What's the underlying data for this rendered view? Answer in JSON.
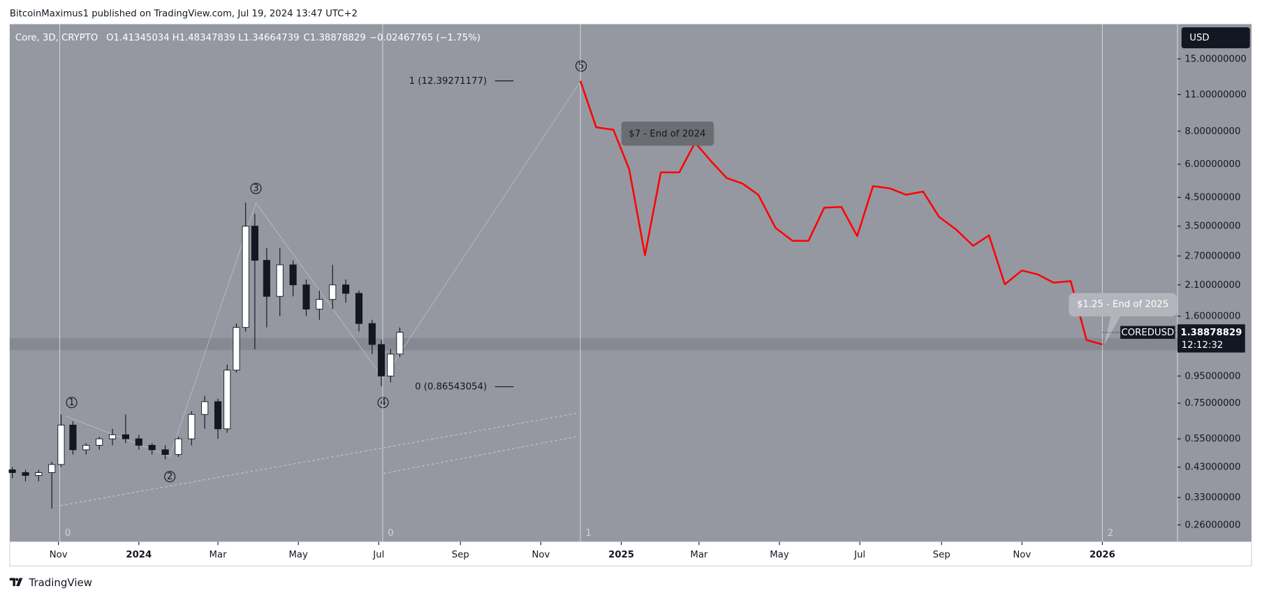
{
  "header": "BitcoinMaximus1 published on TradingView.com, Jul 19, 2024 13:47 UTC+2",
  "legend": {
    "symbol": "Core, 3D, CRYPTO",
    "open": "O1.41345034",
    "high": "H1.48347839",
    "low": "L1.34664739",
    "close": "C1.38878829",
    "change": "−0.02467765 (−1.75%)"
  },
  "footer": "TradingView",
  "currency": "USD",
  "chart_data": {
    "type": "candlestick",
    "log_scale": true,
    "ylim": [
      0.2245,
      20.3
    ],
    "yticks": [
      {
        "value": 15,
        "label": "15.00000000"
      },
      {
        "value": 11,
        "label": "11.00000000"
      },
      {
        "value": 8,
        "label": "8.00000000"
      },
      {
        "value": 6,
        "label": "6.00000000"
      },
      {
        "value": 4.5,
        "label": "4.50000000"
      },
      {
        "value": 3.5,
        "label": "3.50000000"
      },
      {
        "value": 2.7,
        "label": "2.70000000"
      },
      {
        "value": 2.1,
        "label": "2.10000000"
      },
      {
        "value": 1.6,
        "label": "1.60000000"
      },
      {
        "value": 0.95,
        "label": "0.95000000"
      },
      {
        "value": 0.75,
        "label": "0.75000000"
      },
      {
        "value": 0.55,
        "label": "0.55000000"
      },
      {
        "value": 0.43,
        "label": "0.43000000"
      },
      {
        "value": 0.33,
        "label": "0.33000000"
      },
      {
        "value": 0.26,
        "label": "0.26000000"
      }
    ],
    "xlim": [
      "2023-09-25",
      "2026-02-27"
    ],
    "xticks": [
      {
        "value": "2023-11-01",
        "label": "Nov"
      },
      {
        "value": "2024-01-01",
        "label": "2024"
      },
      {
        "value": "2024-03-01",
        "label": "Mar"
      },
      {
        "value": "2024-05-01",
        "label": "May"
      },
      {
        "value": "2024-07-01",
        "label": "Jul"
      },
      {
        "value": "2024-09-01",
        "label": "Sep"
      },
      {
        "value": "2024-11-01",
        "label": "Nov"
      },
      {
        "value": "2025-01-01",
        "label": "2025"
      },
      {
        "value": "2025-03-01",
        "label": "Mar"
      },
      {
        "value": "2025-05-01",
        "label": "May"
      },
      {
        "value": "2025-07-01",
        "label": "Jul"
      },
      {
        "value": "2025-09-01",
        "label": "Sep"
      },
      {
        "value": "2025-11-01",
        "label": "Nov"
      },
      {
        "value": "2026-01-01",
        "label": "2026"
      }
    ],
    "x": [
      "2023-09-27",
      "2023-10-07",
      "2023-10-17",
      "2023-10-27",
      "2023-11-03",
      "2023-11-12",
      "2023-11-22",
      "2023-12-02",
      "2023-12-12",
      "2023-12-22",
      "2024-01-01",
      "2024-01-11",
      "2024-01-21",
      "2024-01-31",
      "2024-02-10",
      "2024-02-20",
      "2024-03-01",
      "2024-03-08",
      "2024-03-15",
      "2024-03-22",
      "2024-03-29",
      "2024-04-07",
      "2024-04-17",
      "2024-04-27",
      "2024-05-07",
      "2024-05-17",
      "2024-05-27",
      "2024-06-06",
      "2024-06-16",
      "2024-06-26",
      "2024-07-03",
      "2024-07-10",
      "2024-07-17"
    ],
    "open": [
      0.42,
      0.41,
      0.4,
      0.41,
      0.44,
      0.62,
      0.5,
      0.52,
      0.55,
      0.57,
      0.55,
      0.52,
      0.5,
      0.48,
      0.55,
      0.68,
      0.76,
      0.6,
      1.0,
      1.45,
      3.5,
      2.6,
      1.9,
      2.5,
      2.1,
      1.7,
      1.85,
      2.1,
      1.95,
      1.5,
      1.25,
      0.95,
      1.15
    ],
    "high": [
      0.43,
      0.42,
      0.42,
      0.45,
      0.68,
      0.64,
      0.53,
      0.56,
      0.6,
      0.68,
      0.57,
      0.53,
      0.52,
      0.56,
      0.7,
      0.8,
      0.78,
      1.05,
      1.5,
      4.3,
      3.9,
      2.9,
      2.9,
      2.6,
      2.2,
      2.0,
      2.5,
      2.2,
      2.0,
      1.55,
      1.3,
      1.2,
      1.45
    ],
    "low": [
      0.39,
      0.38,
      0.38,
      0.3,
      0.43,
      0.48,
      0.48,
      0.5,
      0.52,
      0.53,
      0.5,
      0.48,
      0.46,
      0.47,
      0.52,
      0.6,
      0.55,
      0.58,
      0.98,
      1.4,
      1.2,
      1.45,
      1.6,
      1.9,
      1.6,
      1.55,
      1.7,
      1.8,
      1.4,
      1.15,
      0.87,
      0.9,
      1.12
    ],
    "close": [
      0.41,
      0.4,
      0.41,
      0.44,
      0.62,
      0.5,
      0.52,
      0.55,
      0.57,
      0.55,
      0.52,
      0.5,
      0.48,
      0.55,
      0.68,
      0.76,
      0.6,
      1.0,
      1.45,
      3.5,
      2.6,
      1.9,
      2.5,
      2.1,
      1.7,
      1.85,
      2.1,
      1.95,
      1.5,
      1.25,
      0.95,
      1.15,
      1.39
    ],
    "forecast": {
      "color": "#ff0000",
      "x": [
        "2024-12-01",
        "2024-12-13",
        "2024-12-26",
        "2025-01-07",
        "2025-01-19",
        "2025-01-31",
        "2025-02-14",
        "2025-02-26",
        "2025-03-10",
        "2025-03-22",
        "2025-04-03",
        "2025-04-15",
        "2025-04-28",
        "2025-05-11",
        "2025-05-23",
        "2025-06-04",
        "2025-06-17",
        "2025-06-29",
        "2025-07-11",
        "2025-07-24",
        "2025-08-05",
        "2025-08-18",
        "2025-08-30",
        "2025-09-12",
        "2025-09-25",
        "2025-10-07",
        "2025-10-19",
        "2025-11-01",
        "2025-11-13",
        "2025-11-25",
        "2025-12-08",
        "2025-12-20",
        "2026-01-01"
      ],
      "values": [
        12.39,
        8.27,
        8.1,
        5.75,
        2.72,
        5.59,
        5.59,
        7.24,
        6.17,
        5.32,
        5.07,
        4.6,
        3.45,
        3.08,
        3.08,
        4.11,
        4.14,
        3.21,
        4.96,
        4.86,
        4.6,
        4.73,
        3.8,
        3.4,
        2.95,
        3.23,
        2.11,
        2.38,
        2.3,
        2.14,
        2.17,
        1.3,
        1.25
      ]
    },
    "fib_levels": [
      {
        "value": 12.39271177,
        "label": "1 (12.39271177)"
      },
      {
        "value": 0.86543054,
        "label": "0 (0.86543054)"
      }
    ],
    "time_zones": [
      {
        "value": "2023-11-02",
        "label": "0"
      },
      {
        "value": "2024-07-04",
        "label": "0"
      },
      {
        "value": "2024-12-01",
        "label": "1"
      },
      {
        "value": "2026-01-01",
        "label": "2"
      }
    ],
    "waves": [
      "1",
      "2",
      "3",
      "4",
      "5"
    ],
    "annotations": [
      "$7 - End of 2024",
      "$1.25 - End of 2025"
    ],
    "last_price": {
      "symbol": "COREDUSD",
      "value": 1.38878829,
      "countdown": "12:12:32"
    }
  }
}
